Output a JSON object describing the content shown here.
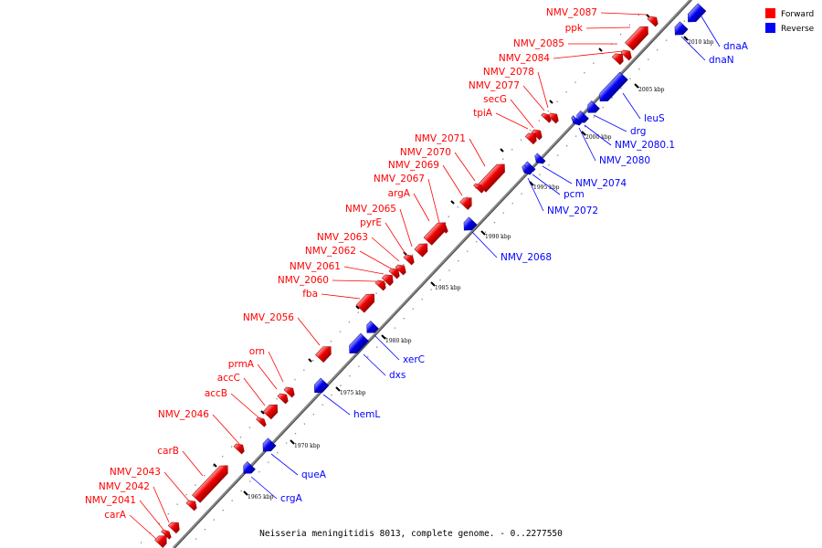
{
  "caption": "Neisseria meningitidis 8013, complete genome. - 0..2277550",
  "legend": [
    {
      "label": "Forward",
      "color": "#ff0000"
    },
    {
      "label": "Reverse",
      "color": "#0000ff"
    }
  ],
  "colors": {
    "forward": "#ff0000",
    "reverse": "#0000ff",
    "backbone": "#888888"
  },
  "tick_labels": [
    "1965 kbp",
    "1970 kbp",
    "1975 kbp",
    "1980 kbp",
    "1985 kbp",
    "1990 kbp",
    "1995 kbp",
    "2000 kbp",
    "2005 kbp",
    "2010 kbp"
  ],
  "forward_genes": [
    "NMV_2087",
    "ppk",
    "NMV_2085",
    "NMV_2084",
    "NMV_2078",
    "NMV_2077",
    "secG",
    "tpiA",
    "NMV_2071",
    "NMV_2070",
    "NMV_2069",
    "NMV_2067",
    "argA",
    "NMV_2065",
    "pyrE",
    "NMV_2063",
    "NMV_2062",
    "NMV_2061",
    "NMV_2060",
    "fba",
    "NMV_2056",
    "orn",
    "prmA",
    "accC",
    "accB",
    "NMV_2046",
    "carB",
    "NMV_2043",
    "NMV_2042",
    "NMV_2041",
    "carA"
  ],
  "reverse_genes": [
    "dnaA",
    "dnaN",
    "leuS",
    "drg",
    "NMV_2080.1",
    "NMV_2080",
    "NMV_2074",
    "pcm",
    "NMV_2072",
    "NMV_2068",
    "xerC",
    "dxs",
    "hemL",
    "queA",
    "crgA"
  ]
}
